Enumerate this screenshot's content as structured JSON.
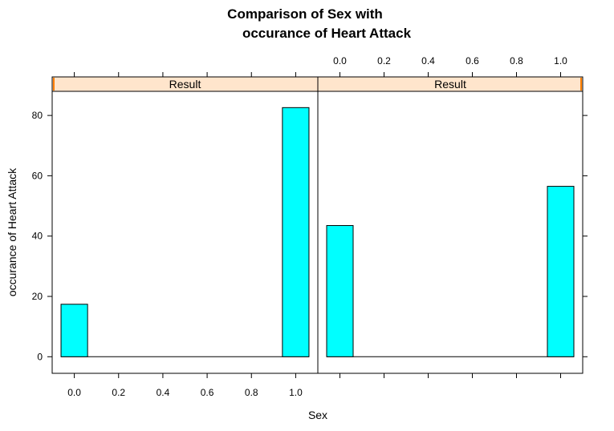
{
  "chart_data": {
    "type": "bar",
    "title_lines": [
      "Comparison of Sex with",
      "occurance of Heart Attack"
    ],
    "xlabel": "Sex",
    "ylabel": "occurance of Heart Attack",
    "xlim": [
      -0.1,
      1.1
    ],
    "ylim": [
      -5.5,
      88
    ],
    "x_ticks": [
      0.0,
      0.2,
      0.4,
      0.6,
      0.8,
      1.0
    ],
    "x_tick_labels": [
      "0.0",
      "0.2",
      "0.4",
      "0.6",
      "0.8",
      "1.0"
    ],
    "y_ticks": [
      0,
      20,
      40,
      60,
      80
    ],
    "y_tick_labels": [
      "0",
      "20",
      "40",
      "60",
      "80"
    ],
    "bin_width": 0.12,
    "panels": [
      {
        "strip": "Result",
        "bars": [
          {
            "x": 0.0,
            "value": 17.4
          },
          {
            "x": 1.0,
            "value": 82.6
          }
        ]
      },
      {
        "strip": "Result",
        "bars": [
          {
            "x": 0.0,
            "value": 43.5
          },
          {
            "x": 1.0,
            "value": 56.5
          }
        ]
      }
    ],
    "colors": {
      "bar_fill": "#00FFFF",
      "strip_bg": "#FFE5CC",
      "strip_marker": "#FF7F00"
    },
    "grid": false,
    "legend": "none"
  }
}
